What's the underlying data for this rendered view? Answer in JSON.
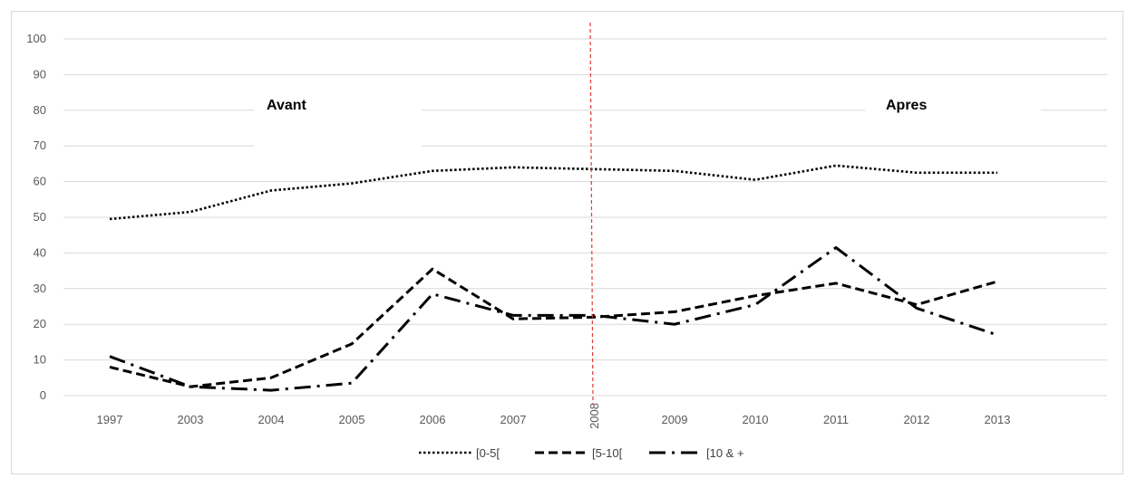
{
  "chart_data": {
    "type": "line",
    "categories": [
      "1997",
      "2003",
      "2004",
      "2005",
      "2006",
      "2007",
      "2008",
      "2009",
      "2010",
      "2011",
      "2012",
      "2013"
    ],
    "ylim": [
      0,
      100
    ],
    "yticks": [
      "0",
      "10",
      "20",
      "30",
      "40",
      "50",
      "60",
      "70",
      "80",
      "90",
      "100"
    ],
    "grid": true,
    "legend_position": "bottom",
    "series": [
      {
        "name": "[0-5[",
        "style": "dotted",
        "values": [
          49.5,
          51.5,
          57.5,
          59.5,
          63,
          64,
          63.5,
          63,
          60.5,
          64.5,
          62.5,
          62.5
        ]
      },
      {
        "name": "[5-10[",
        "style": "dashed",
        "values": [
          8,
          2.5,
          5,
          14.5,
          35.5,
          21.5,
          22,
          23.5,
          28,
          31.5,
          25.5,
          32
        ]
      },
      {
        "name": "[10 & +",
        "style": "dash-dot",
        "values": [
          11,
          2.5,
          1.5,
          3.5,
          28.5,
          22.5,
          22.5,
          20,
          25.5,
          41.5,
          24.5,
          17
        ]
      }
    ],
    "marker": {
      "category": "2008",
      "color": "#e03c31",
      "style": "dashed"
    },
    "annotations": [
      "Avant",
      "Apres"
    ],
    "colors": {
      "series": "#000000",
      "grid": "#d9d9d9",
      "marker": "#e03c31",
      "tick_text": "#595959"
    }
  }
}
